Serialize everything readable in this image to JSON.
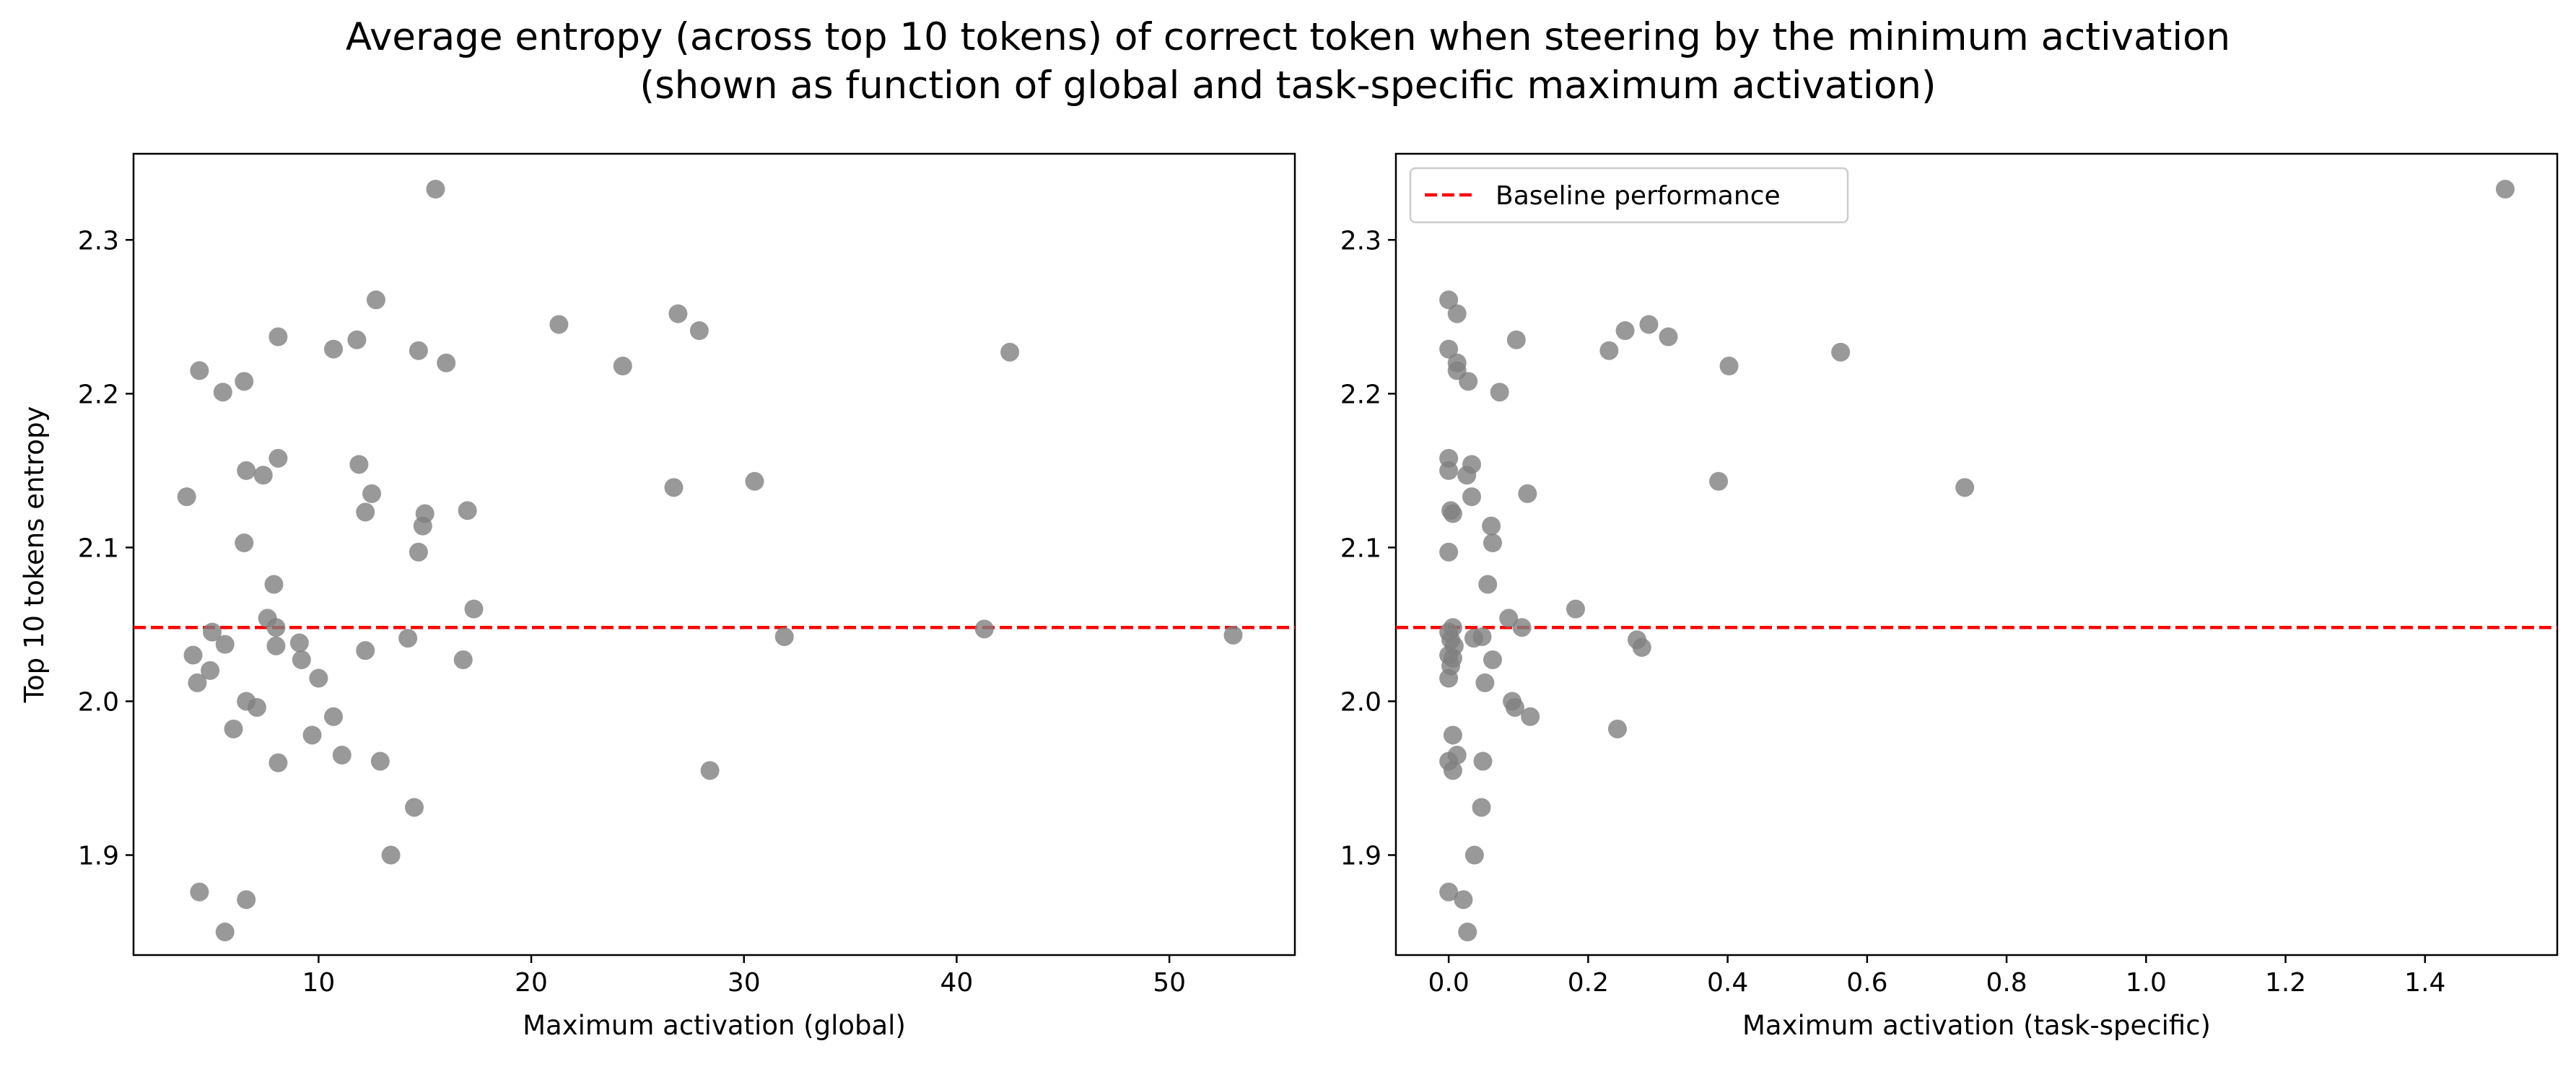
{
  "figure": {
    "title": "Average entropy (across top 10 tokens) of correct token when steering by the minimum activation\n(shown as function of global and task-specific maximum activation)"
  },
  "colors": {
    "point": "#808080",
    "baseline": "#ff0000",
    "axes": "#000000",
    "background": "#ffffff"
  },
  "chart_data": [
    {
      "type": "scatter",
      "title": "",
      "xlabel": "Maximum activation (global)",
      "ylabel": "Top 10 tokens entropy",
      "xlim": [
        1.3,
        55.9
      ],
      "ylim": [
        1.835,
        2.356
      ],
      "xticks": [
        {
          "value": 10,
          "label": "10"
        },
        {
          "value": 20,
          "label": "20"
        },
        {
          "value": 30,
          "label": "30"
        },
        {
          "value": 40,
          "label": "40"
        },
        {
          "value": 50,
          "label": "50"
        }
      ],
      "yticks": [
        {
          "value": 1.9,
          "label": "1.9"
        },
        {
          "value": 2.0,
          "label": "2.0"
        },
        {
          "value": 2.1,
          "label": "2.1"
        },
        {
          "value": 2.2,
          "label": "2.2"
        },
        {
          "value": 2.3,
          "label": "2.3"
        }
      ],
      "grid": false,
      "baseline": {
        "y": 2.048,
        "style": "dashed"
      },
      "legend": null,
      "points": [
        {
          "x": 3.8,
          "y": 2.133
        },
        {
          "x": 4.1,
          "y": 2.03
        },
        {
          "x": 4.3,
          "y": 2.012
        },
        {
          "x": 4.4,
          "y": 2.215
        },
        {
          "x": 4.4,
          "y": 1.876
        },
        {
          "x": 4.9,
          "y": 2.02
        },
        {
          "x": 5.0,
          "y": 2.045
        },
        {
          "x": 5.5,
          "y": 2.201
        },
        {
          "x": 5.6,
          "y": 2.037
        },
        {
          "x": 5.6,
          "y": 1.85
        },
        {
          "x": 6.0,
          "y": 1.982
        },
        {
          "x": 6.5,
          "y": 2.208
        },
        {
          "x": 6.6,
          "y": 2.15
        },
        {
          "x": 6.5,
          "y": 2.103
        },
        {
          "x": 6.6,
          "y": 2.0
        },
        {
          "x": 6.6,
          "y": 1.871
        },
        {
          "x": 7.1,
          "y": 1.996
        },
        {
          "x": 7.4,
          "y": 2.147
        },
        {
          "x": 7.6,
          "y": 2.054
        },
        {
          "x": 7.9,
          "y": 2.076
        },
        {
          "x": 8.0,
          "y": 2.048
        },
        {
          "x": 8.0,
          "y": 2.036
        },
        {
          "x": 8.1,
          "y": 2.237
        },
        {
          "x": 8.1,
          "y": 2.158
        },
        {
          "x": 8.1,
          "y": 1.96
        },
        {
          "x": 9.1,
          "y": 2.038
        },
        {
          "x": 9.2,
          "y": 2.027
        },
        {
          "x": 9.7,
          "y": 1.978
        },
        {
          "x": 10.0,
          "y": 2.015
        },
        {
          "x": 10.7,
          "y": 2.229
        },
        {
          "x": 10.7,
          "y": 1.99
        },
        {
          "x": 11.1,
          "y": 1.965
        },
        {
          "x": 11.8,
          "y": 2.235
        },
        {
          "x": 11.9,
          "y": 2.154
        },
        {
          "x": 12.2,
          "y": 2.123
        },
        {
          "x": 12.2,
          "y": 2.033
        },
        {
          "x": 12.5,
          "y": 2.135
        },
        {
          "x": 12.7,
          "y": 2.261
        },
        {
          "x": 12.9,
          "y": 1.961
        },
        {
          "x": 13.4,
          "y": 1.9
        },
        {
          "x": 14.2,
          "y": 2.041
        },
        {
          "x": 14.5,
          "y": 1.931
        },
        {
          "x": 14.7,
          "y": 2.228
        },
        {
          "x": 14.7,
          "y": 2.097
        },
        {
          "x": 14.9,
          "y": 2.114
        },
        {
          "x": 15.0,
          "y": 2.122
        },
        {
          "x": 15.5,
          "y": 2.333
        },
        {
          "x": 16.0,
          "y": 2.22
        },
        {
          "x": 16.8,
          "y": 2.027
        },
        {
          "x": 17.0,
          "y": 2.124
        },
        {
          "x": 17.3,
          "y": 2.06
        },
        {
          "x": 21.3,
          "y": 2.245
        },
        {
          "x": 24.3,
          "y": 2.218
        },
        {
          "x": 26.7,
          "y": 2.139
        },
        {
          "x": 26.9,
          "y": 2.252
        },
        {
          "x": 27.9,
          "y": 2.241
        },
        {
          "x": 28.4,
          "y": 1.955
        },
        {
          "x": 30.5,
          "y": 2.143
        },
        {
          "x": 31.9,
          "y": 2.042
        },
        {
          "x": 41.3,
          "y": 2.047
        },
        {
          "x": 42.5,
          "y": 2.227
        },
        {
          "x": 53.0,
          "y": 2.043
        }
      ]
    },
    {
      "type": "scatter",
      "title": "",
      "xlabel": "Maximum activation (task-specific)",
      "ylabel": "",
      "xlim": [
        -0.0757,
        1.5896
      ],
      "ylim": [
        1.835,
        2.356
      ],
      "xticks": [
        {
          "value": 0.0,
          "label": "0.0"
        },
        {
          "value": 0.2,
          "label": "0.2"
        },
        {
          "value": 0.4,
          "label": "0.4"
        },
        {
          "value": 0.6,
          "label": "0.6"
        },
        {
          "value": 0.8,
          "label": "0.8"
        },
        {
          "value": 1.0,
          "label": "1.0"
        },
        {
          "value": 1.2,
          "label": "1.2"
        },
        {
          "value": 1.4,
          "label": "1.4"
        }
      ],
      "yticks": [
        {
          "value": 1.9,
          "label": "1.9"
        },
        {
          "value": 2.0,
          "label": "2.0"
        },
        {
          "value": 2.1,
          "label": "2.1"
        },
        {
          "value": 2.2,
          "label": "2.2"
        },
        {
          "value": 2.3,
          "label": "2.3"
        }
      ],
      "grid": false,
      "baseline": {
        "y": 2.048,
        "style": "dashed"
      },
      "legend": {
        "position": "upper-left",
        "entries": [
          "Baseline performance"
        ]
      },
      "points": [
        {
          "x": 0.0,
          "y": 2.261
        },
        {
          "x": 0.0,
          "y": 2.229
        },
        {
          "x": 0.0,
          "y": 2.158
        },
        {
          "x": 0.0,
          "y": 2.15
        },
        {
          "x": 0.003,
          "y": 2.124
        },
        {
          "x": 0.006,
          "y": 2.122
        },
        {
          "x": 0.0,
          "y": 2.097
        },
        {
          "x": 0.0,
          "y": 2.045
        },
        {
          "x": 0.006,
          "y": 2.048
        },
        {
          "x": 0.003,
          "y": 2.04
        },
        {
          "x": 0.008,
          "y": 2.036
        },
        {
          "x": 0.0,
          "y": 2.03
        },
        {
          "x": 0.006,
          "y": 2.028
        },
        {
          "x": 0.003,
          "y": 2.023
        },
        {
          "x": 0.0,
          "y": 2.015
        },
        {
          "x": 0.006,
          "y": 1.978
        },
        {
          "x": 0.0,
          "y": 1.961
        },
        {
          "x": 0.006,
          "y": 1.955
        },
        {
          "x": 0.012,
          "y": 1.965
        },
        {
          "x": 0.0,
          "y": 1.876
        },
        {
          "x": 0.012,
          "y": 2.252
        },
        {
          "x": 0.012,
          "y": 2.22
        },
        {
          "x": 0.012,
          "y": 2.215
        },
        {
          "x": 0.028,
          "y": 2.208
        },
        {
          "x": 0.021,
          "y": 1.871
        },
        {
          "x": 0.027,
          "y": 1.85
        },
        {
          "x": 0.026,
          "y": 2.147
        },
        {
          "x": 0.033,
          "y": 2.154
        },
        {
          "x": 0.033,
          "y": 2.133
        },
        {
          "x": 0.036,
          "y": 2.041
        },
        {
          "x": 0.037,
          "y": 1.9
        },
        {
          "x": 0.048,
          "y": 2.042
        },
        {
          "x": 0.047,
          "y": 1.931
        },
        {
          "x": 0.049,
          "y": 1.961
        },
        {
          "x": 0.052,
          "y": 2.012
        },
        {
          "x": 0.056,
          "y": 2.076
        },
        {
          "x": 0.061,
          "y": 2.114
        },
        {
          "x": 0.063,
          "y": 2.103
        },
        {
          "x": 0.063,
          "y": 2.027
        },
        {
          "x": 0.073,
          "y": 2.201
        },
        {
          "x": 0.086,
          "y": 2.054
        },
        {
          "x": 0.091,
          "y": 2.0
        },
        {
          "x": 0.095,
          "y": 1.996
        },
        {
          "x": 0.097,
          "y": 2.235
        },
        {
          "x": 0.105,
          "y": 2.048
        },
        {
          "x": 0.113,
          "y": 2.135
        },
        {
          "x": 0.117,
          "y": 1.99
        },
        {
          "x": 0.182,
          "y": 2.06
        },
        {
          "x": 0.23,
          "y": 2.228
        },
        {
          "x": 0.242,
          "y": 1.982
        },
        {
          "x": 0.253,
          "y": 2.241
        },
        {
          "x": 0.27,
          "y": 2.04
        },
        {
          "x": 0.277,
          "y": 2.035
        },
        {
          "x": 0.287,
          "y": 2.245
        },
        {
          "x": 0.315,
          "y": 2.237
        },
        {
          "x": 0.387,
          "y": 2.143
        },
        {
          "x": 0.402,
          "y": 2.218
        },
        {
          "x": 0.562,
          "y": 2.227
        },
        {
          "x": 0.74,
          "y": 2.139
        },
        {
          "x": 1.515,
          "y": 2.333
        }
      ]
    }
  ]
}
